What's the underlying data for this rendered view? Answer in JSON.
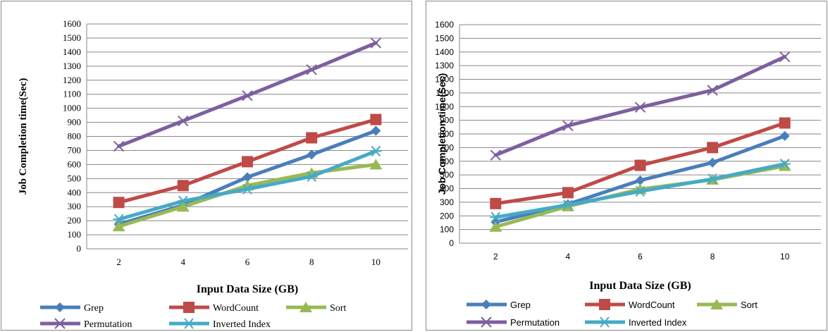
{
  "chart_data": [
    {
      "type": "line",
      "title": "",
      "xlabel": "Input Data Size (GB)",
      "ylabel": "Job Completion time(Sec)",
      "categories": [
        "2",
        "4",
        "6",
        "8",
        "10"
      ],
      "ylim": [
        0,
        1600
      ],
      "yticks": [
        "0",
        "100",
        "200",
        "300",
        "400",
        "500",
        "600",
        "700",
        "800",
        "900",
        "1000",
        "1100",
        "1200",
        "1300",
        "1400",
        "1500",
        "1600"
      ],
      "grid": true,
      "legend_position": "bottom",
      "series": [
        {
          "name": "Grep",
          "color": "#4A7EBB",
          "marker": "diamond",
          "values": [
            175,
            310,
            510,
            670,
            840
          ]
        },
        {
          "name": "WordCount",
          "color": "#BE4B48",
          "marker": "square",
          "values": [
            330,
            450,
            620,
            790,
            920
          ]
        },
        {
          "name": "Sort",
          "color": "#98B954",
          "marker": "triangle",
          "values": [
            160,
            300,
            450,
            540,
            600
          ]
        },
        {
          "name": "Permutation",
          "color": "#7D60A0",
          "marker": "x",
          "values": [
            730,
            910,
            1090,
            1275,
            1465
          ]
        },
        {
          "name": "Inverted Index",
          "color": "#46AAC5",
          "marker": "star",
          "values": [
            210,
            340,
            425,
            515,
            695
          ]
        }
      ]
    },
    {
      "type": "line",
      "title": "",
      "xlabel": "Input Data Size (GB)",
      "ylabel": "Job Completion time(Sec)",
      "categories": [
        "2",
        "4",
        "6",
        "8",
        "10"
      ],
      "ylim": [
        0,
        1600
      ],
      "yticks": [
        "0",
        "100",
        "200",
        "300",
        "400",
        "500",
        "600",
        "700",
        "800",
        "900",
        "1000",
        "1100",
        "1200",
        "1300",
        "1400",
        "1500",
        "1600"
      ],
      "grid": true,
      "legend_position": "bottom",
      "series": [
        {
          "name": "Grep",
          "color": "#4A7EBB",
          "marker": "diamond",
          "values": [
            155,
            285,
            460,
            590,
            785
          ]
        },
        {
          "name": "WordCount",
          "color": "#BE4B48",
          "marker": "square",
          "values": [
            290,
            370,
            570,
            700,
            880
          ]
        },
        {
          "name": "Sort",
          "color": "#98B954",
          "marker": "triangle",
          "values": [
            120,
            270,
            395,
            465,
            565
          ]
        },
        {
          "name": "Permutation",
          "color": "#7D60A0",
          "marker": "x",
          "values": [
            645,
            860,
            995,
            1120,
            1365
          ]
        },
        {
          "name": "Inverted Index",
          "color": "#46AAC5",
          "marker": "star",
          "values": [
            190,
            280,
            380,
            470,
            580
          ]
        }
      ]
    }
  ]
}
